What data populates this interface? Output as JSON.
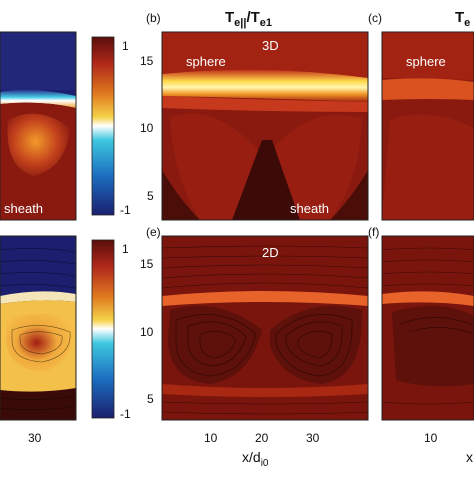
{
  "figure": {
    "title_main": "T",
    "title_sub": "e||",
    "title_sep": "/T",
    "title_sub2": "e1",
    "title_right_partial": "T",
    "title_right_sub": "e"
  },
  "panels": {
    "b": {
      "label": "(b)",
      "mode": "3D",
      "top_text": "sphere",
      "bottom_text": "sheath"
    },
    "c": {
      "label": "(c)",
      "top_text": "sphere"
    },
    "e": {
      "label": "(e)",
      "mode": "2D"
    },
    "f": {
      "label": "(f)"
    },
    "left_top": {
      "bottom_text": "sheath"
    }
  },
  "axes": {
    "xlabel": "x/d",
    "xlabel_sub": "i0",
    "xlabel_right_partial": "x",
    "yticks_top": [
      "15",
      "10",
      "5"
    ],
    "yticks_bottom": [
      "15",
      "10",
      "5"
    ],
    "xticks_mid": [
      "10",
      "20",
      "30"
    ],
    "xticks_left": [
      "30"
    ],
    "xticks_right": [
      "10"
    ]
  },
  "colorbar": {
    "ticks_top": [
      "1",
      "-1"
    ],
    "ticks_bottom": [
      "1",
      "-1"
    ],
    "colors": [
      "#1b1f6e",
      "#1c6dc0",
      "#3ec7e0",
      "#ffffff",
      "#f4d24a",
      "#e07a1f",
      "#b0281a",
      "#5a0e0b"
    ]
  },
  "chart_data": {
    "type": "heatmap",
    "title": "Te||/Te1",
    "xlabel": "x/di0",
    "ylim": [
      3,
      17
    ],
    "xlim": [
      0,
      40
    ],
    "colorbar_range": [
      -1,
      1
    ],
    "panels": [
      "(b) 3D",
      "(c)",
      "(e) 2D",
      "(f)"
    ]
  }
}
